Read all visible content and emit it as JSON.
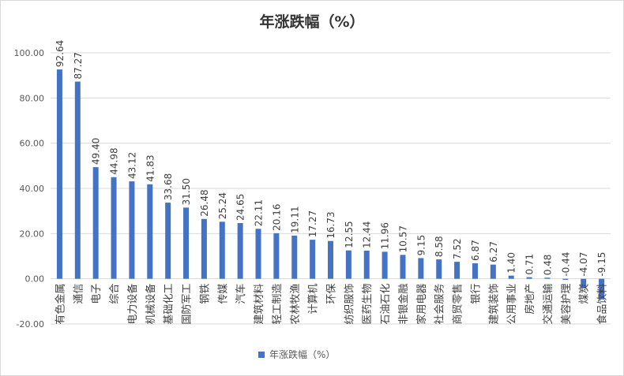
{
  "chart_data": {
    "type": "bar",
    "title": "年涨跌幅（%）",
    "xlabel": "",
    "ylabel": "",
    "ylim": [
      -20,
      100
    ],
    "yticks": [
      "100.00",
      "80.00",
      "60.00",
      "40.00",
      "20.00",
      "0.00",
      "-20.00"
    ],
    "grid": true,
    "legend": {
      "position": "bottom",
      "entries": [
        "年涨跌幅（%）"
      ]
    },
    "color": "#4472C4",
    "categories": [
      "有色金属",
      "通信",
      "电子",
      "综合",
      "电力设备",
      "机械设备",
      "基础化工",
      "国防军工",
      "钢铁",
      "传媒",
      "汽车",
      "建筑材料",
      "轻工制造",
      "农林牧渔",
      "计算机",
      "环保",
      "纺织服饰",
      "医药生物",
      "石油石化",
      "非银金融",
      "家用电器",
      "社会服务",
      "商贸零售",
      "银行",
      "建筑装饰",
      "公用事业",
      "房地产",
      "交通运输",
      "美容护理",
      "煤炭",
      "食品饮料"
    ],
    "values": [
      92.64,
      87.27,
      49.4,
      44.98,
      43.12,
      41.83,
      33.68,
      31.5,
      26.48,
      25.24,
      24.65,
      22.11,
      20.16,
      19.11,
      17.27,
      16.73,
      12.55,
      12.44,
      11.96,
      10.57,
      9.15,
      8.58,
      7.52,
      6.87,
      6.27,
      1.4,
      0.71,
      0.48,
      -0.44,
      -4.07,
      -9.15
    ]
  }
}
